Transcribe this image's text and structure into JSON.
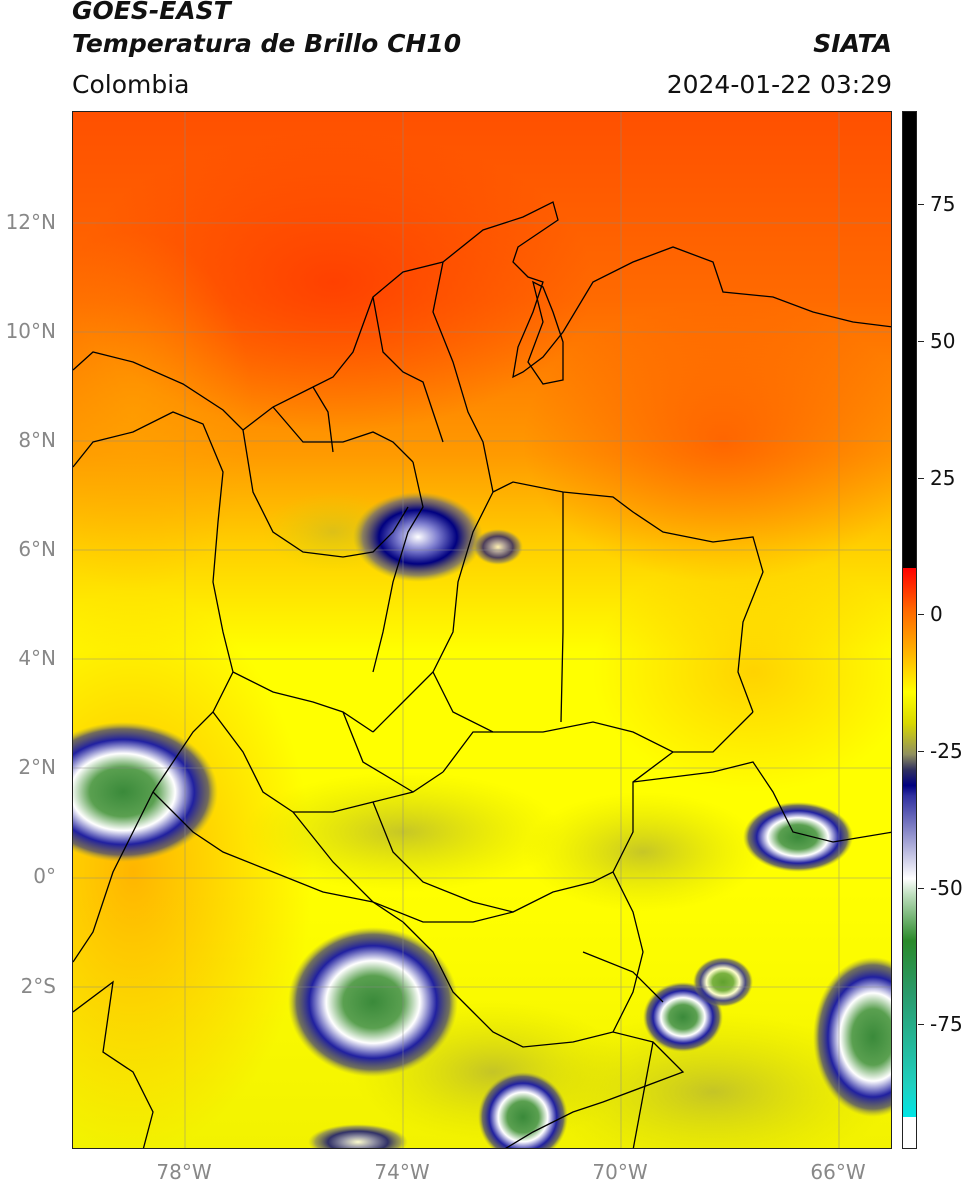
{
  "header": {
    "satellite": "GOES-EAST",
    "product": "Temperatura de Brillo CH10",
    "region": "Colombia",
    "agency": "SIATA",
    "datetime": "2024-01-22 03:29"
  },
  "axes": {
    "lat_labels": [
      "12°N",
      "10°N",
      "8°N",
      "6°N",
      "4°N",
      "2°N",
      "0°",
      "2°S"
    ],
    "lon_labels": [
      "78°W",
      "74°W",
      "70°W",
      "66°W"
    ]
  },
  "colorbar": {
    "tick_labels": [
      "75",
      "50",
      "25",
      "0",
      "-25",
      "-50",
      "-75"
    ],
    "colors": {
      "warm": "#ff6600",
      "neutral": "#ffff00",
      "cold": "#000080",
      "very_cold": "#2a8a2a"
    }
  }
}
